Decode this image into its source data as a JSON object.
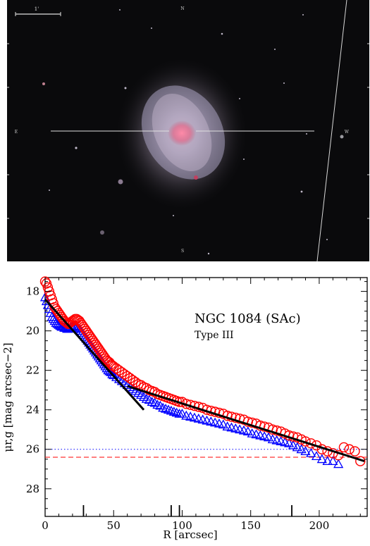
{
  "galaxy_image": {
    "scale_bar_label": "1'",
    "compass": {
      "north": "N",
      "east": "E",
      "west": "W",
      "south": "S"
    }
  },
  "chart_data": {
    "type": "scatter",
    "title": "NGC 1084 (SAc)",
    "subtitle": "Type III",
    "xlabel": "R [arcsec]",
    "ylabel": "μr,g [mag arcsec−2]",
    "xlim": [
      0,
      235
    ],
    "ylim": [
      29.4,
      17.3
    ],
    "y_inverted": true,
    "xticks": [
      0,
      50,
      100,
      150,
      200
    ],
    "yticks": [
      18,
      20,
      22,
      24,
      26,
      28
    ],
    "series": [
      {
        "name": "r",
        "marker": "circle",
        "color": "#ff0000",
        "points": [
          [
            0,
            17.5
          ],
          [
            1,
            17.6
          ],
          [
            2,
            17.8
          ],
          [
            3,
            18.0
          ],
          [
            4,
            18.2
          ],
          [
            5,
            18.4
          ],
          [
            6,
            18.6
          ],
          [
            7,
            18.8
          ],
          [
            8,
            18.9
          ],
          [
            9,
            19.0
          ],
          [
            10,
            19.1
          ],
          [
            11,
            19.2
          ],
          [
            12,
            19.3
          ],
          [
            13,
            19.4
          ],
          [
            14,
            19.5
          ],
          [
            15,
            19.55
          ],
          [
            16,
            19.6
          ],
          [
            17,
            19.65
          ],
          [
            18,
            19.6
          ],
          [
            19,
            19.55
          ],
          [
            20,
            19.5
          ],
          [
            21,
            19.45
          ],
          [
            22,
            19.4
          ],
          [
            23,
            19.4
          ],
          [
            24,
            19.45
          ],
          [
            25,
            19.5
          ],
          [
            26,
            19.6
          ],
          [
            27,
            19.7
          ],
          [
            28,
            19.8
          ],
          [
            29,
            19.9
          ],
          [
            30,
            20.0
          ],
          [
            31,
            20.1
          ],
          [
            32,
            20.2
          ],
          [
            33,
            20.3
          ],
          [
            34,
            20.4
          ],
          [
            35,
            20.5
          ],
          [
            36,
            20.6
          ],
          [
            37,
            20.7
          ],
          [
            38,
            20.8
          ],
          [
            39,
            20.9
          ],
          [
            40,
            21.0
          ],
          [
            41,
            21.1
          ],
          [
            42,
            21.2
          ],
          [
            43,
            21.3
          ],
          [
            44,
            21.4
          ],
          [
            45,
            21.5
          ],
          [
            46,
            21.55
          ],
          [
            47,
            21.6
          ],
          [
            48,
            21.7
          ],
          [
            49,
            21.75
          ],
          [
            50,
            21.8
          ],
          [
            52,
            21.9
          ],
          [
            54,
            22.0
          ],
          [
            56,
            22.1
          ],
          [
            58,
            22.2
          ],
          [
            60,
            22.3
          ],
          [
            62,
            22.4
          ],
          [
            64,
            22.5
          ],
          [
            66,
            22.6
          ],
          [
            68,
            22.7
          ],
          [
            70,
            22.75
          ],
          [
            72,
            22.85
          ],
          [
            74,
            22.9
          ],
          [
            76,
            23.0
          ],
          [
            78,
            23.05
          ],
          [
            80,
            23.1
          ],
          [
            82,
            23.2
          ],
          [
            84,
            23.25
          ],
          [
            86,
            23.3
          ],
          [
            88,
            23.35
          ],
          [
            90,
            23.4
          ],
          [
            92,
            23.45
          ],
          [
            94,
            23.5
          ],
          [
            96,
            23.55
          ],
          [
            98,
            23.6
          ],
          [
            100,
            23.6
          ],
          [
            103,
            23.7
          ],
          [
            106,
            23.75
          ],
          [
            109,
            23.8
          ],
          [
            112,
            23.85
          ],
          [
            115,
            23.9
          ],
          [
            118,
            24.0
          ],
          [
            121,
            24.05
          ],
          [
            124,
            24.1
          ],
          [
            127,
            24.15
          ],
          [
            130,
            24.2
          ],
          [
            133,
            24.3
          ],
          [
            136,
            24.35
          ],
          [
            139,
            24.4
          ],
          [
            142,
            24.45
          ],
          [
            145,
            24.5
          ],
          [
            148,
            24.6
          ],
          [
            151,
            24.65
          ],
          [
            154,
            24.7
          ],
          [
            157,
            24.8
          ],
          [
            160,
            24.85
          ],
          [
            163,
            24.9
          ],
          [
            166,
            25.0
          ],
          [
            169,
            25.05
          ],
          [
            172,
            25.1
          ],
          [
            175,
            25.2
          ],
          [
            178,
            25.3
          ],
          [
            181,
            25.35
          ],
          [
            184,
            25.4
          ],
          [
            187,
            25.5
          ],
          [
            190,
            25.6
          ],
          [
            194,
            25.7
          ],
          [
            198,
            25.8
          ],
          [
            202,
            26.0
          ],
          [
            206,
            26.1
          ],
          [
            210,
            26.2
          ],
          [
            214,
            26.3
          ],
          [
            218,
            25.9
          ],
          [
            222,
            26.0
          ],
          [
            226,
            26.1
          ],
          [
            230,
            26.6
          ]
        ]
      },
      {
        "name": "g",
        "marker": "triangle",
        "color": "#0000ff",
        "points": [
          [
            0,
            18.3
          ],
          [
            1,
            18.5
          ],
          [
            2,
            18.7
          ],
          [
            3,
            18.9
          ],
          [
            4,
            19.1
          ],
          [
            5,
            19.3
          ],
          [
            6,
            19.4
          ],
          [
            7,
            19.5
          ],
          [
            8,
            19.6
          ],
          [
            9,
            19.65
          ],
          [
            10,
            19.7
          ],
          [
            11,
            19.75
          ],
          [
            12,
            19.8
          ],
          [
            13,
            19.8
          ],
          [
            14,
            19.85
          ],
          [
            15,
            19.85
          ],
          [
            16,
            19.9
          ],
          [
            17,
            19.9
          ],
          [
            18,
            19.85
          ],
          [
            19,
            19.8
          ],
          [
            20,
            19.8
          ],
          [
            21,
            19.75
          ],
          [
            22,
            19.75
          ],
          [
            23,
            19.8
          ],
          [
            24,
            19.85
          ],
          [
            25,
            19.9
          ],
          [
            26,
            20.0
          ],
          [
            27,
            20.1
          ],
          [
            28,
            20.2
          ],
          [
            29,
            20.3
          ],
          [
            30,
            20.4
          ],
          [
            31,
            20.5
          ],
          [
            32,
            20.6
          ],
          [
            33,
            20.7
          ],
          [
            34,
            20.8
          ],
          [
            35,
            20.9
          ],
          [
            36,
            21.0
          ],
          [
            37,
            21.1
          ],
          [
            38,
            21.2
          ],
          [
            39,
            21.3
          ],
          [
            40,
            21.4
          ],
          [
            41,
            21.5
          ],
          [
            42,
            21.6
          ],
          [
            43,
            21.7
          ],
          [
            44,
            21.8
          ],
          [
            45,
            21.9
          ],
          [
            46,
            22.0
          ],
          [
            47,
            22.05
          ],
          [
            48,
            22.1
          ],
          [
            49,
            22.2
          ],
          [
            50,
            22.25
          ],
          [
            52,
            22.35
          ],
          [
            54,
            22.45
          ],
          [
            56,
            22.55
          ],
          [
            58,
            22.65
          ],
          [
            60,
            22.75
          ],
          [
            62,
            22.85
          ],
          [
            64,
            22.95
          ],
          [
            66,
            23.05
          ],
          [
            68,
            23.15
          ],
          [
            70,
            23.25
          ],
          [
            72,
            23.35
          ],
          [
            74,
            23.45
          ],
          [
            76,
            23.5
          ],
          [
            78,
            23.6
          ],
          [
            80,
            23.65
          ],
          [
            82,
            23.75
          ],
          [
            84,
            23.8
          ],
          [
            86,
            23.9
          ],
          [
            88,
            23.95
          ],
          [
            90,
            24.0
          ],
          [
            92,
            24.05
          ],
          [
            94,
            24.1
          ],
          [
            96,
            24.15
          ],
          [
            98,
            24.2
          ],
          [
            100,
            24.2
          ],
          [
            103,
            24.3
          ],
          [
            106,
            24.35
          ],
          [
            109,
            24.4
          ],
          [
            112,
            24.45
          ],
          [
            115,
            24.5
          ],
          [
            118,
            24.55
          ],
          [
            121,
            24.6
          ],
          [
            124,
            24.65
          ],
          [
            127,
            24.7
          ],
          [
            130,
            24.75
          ],
          [
            133,
            24.85
          ],
          [
            136,
            24.9
          ],
          [
            139,
            24.95
          ],
          [
            142,
            25.0
          ],
          [
            145,
            25.05
          ],
          [
            148,
            25.1
          ],
          [
            151,
            25.2
          ],
          [
            154,
            25.25
          ],
          [
            157,
            25.3
          ],
          [
            160,
            25.35
          ],
          [
            163,
            25.4
          ],
          [
            166,
            25.5
          ],
          [
            169,
            25.55
          ],
          [
            172,
            25.6
          ],
          [
            175,
            25.65
          ],
          [
            178,
            25.7
          ],
          [
            181,
            25.8
          ],
          [
            184,
            25.9
          ],
          [
            187,
            26.0
          ],
          [
            190,
            26.1
          ],
          [
            194,
            26.2
          ],
          [
            198,
            26.35
          ],
          [
            202,
            26.5
          ],
          [
            206,
            26.6
          ],
          [
            210,
            26.6
          ],
          [
            214,
            26.75
          ]
        ]
      }
    ],
    "fits": [
      {
        "name": "inner-fit",
        "x": [
          0,
          72
        ],
        "y": [
          18.4,
          24.0
        ]
      },
      {
        "name": "outer-fit",
        "x": [
          60,
          233
        ],
        "y": [
          22.8,
          26.6
        ]
      }
    ],
    "reference_lines": [
      {
        "name": "sky-limit-g",
        "y": 26.0,
        "style": "dotted",
        "color": "#0000ff"
      },
      {
        "name": "sky-limit-r",
        "y": 26.4,
        "style": "dashed",
        "color": "#ff0000"
      }
    ],
    "break_markers_x": [
      28,
      92,
      98,
      180
    ]
  }
}
